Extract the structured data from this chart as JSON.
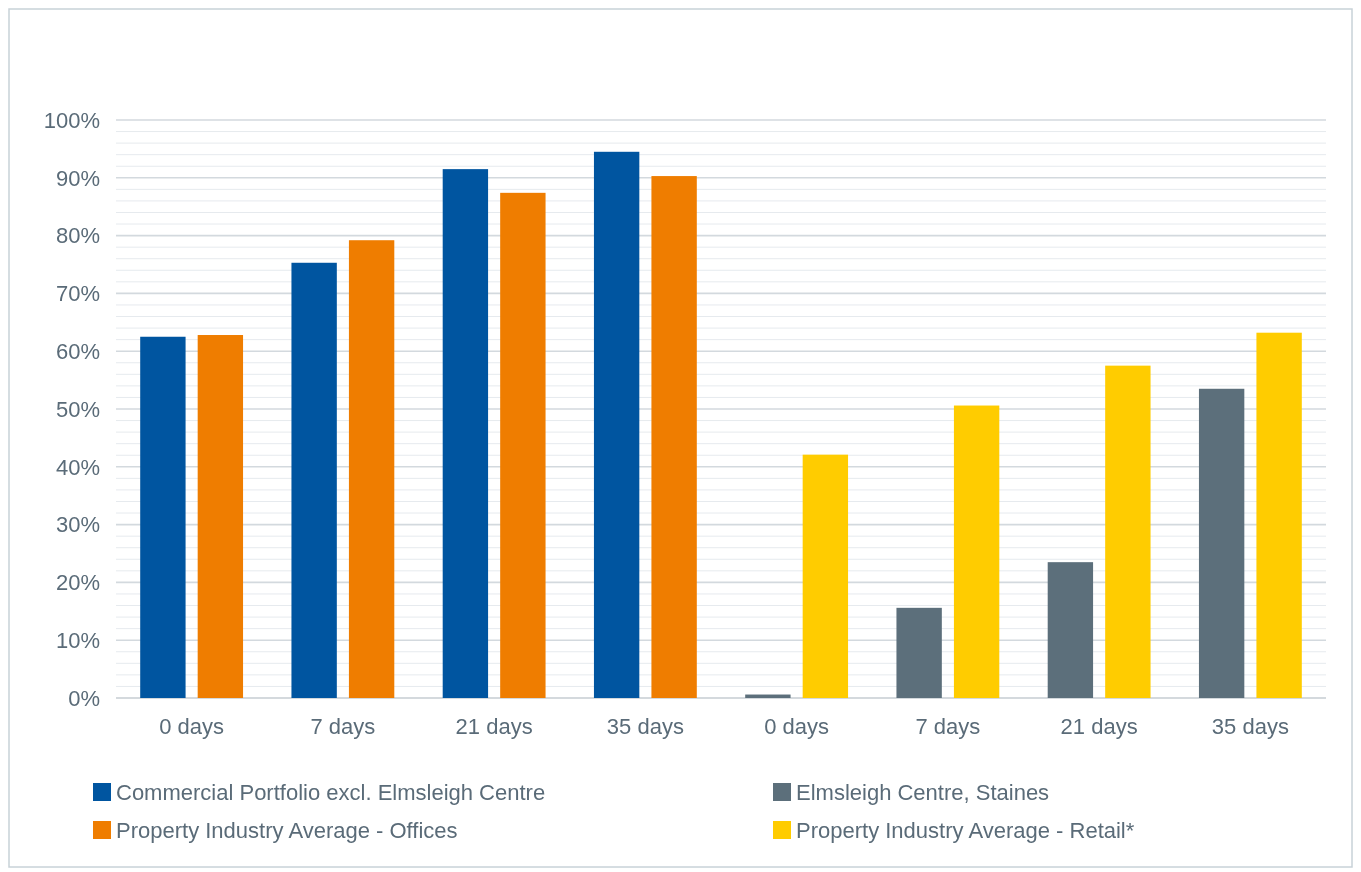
{
  "chart_data": {
    "type": "bar",
    "categories": [
      "0 days",
      "7 days",
      "21 days",
      "35 days",
      "0 days",
      "7 days",
      "21 days",
      "35 days"
    ],
    "series": [
      {
        "name": "Commercial Portfolio excl. Elmsleigh Centre",
        "color": "#0055a0",
        "values": [
          62.5,
          75.3,
          91.5,
          94.5,
          null,
          null,
          null,
          null
        ]
      },
      {
        "name": "Property Industry Average - Offices",
        "color": "#ef7d00",
        "values": [
          62.8,
          79.2,
          87.4,
          90.3,
          null,
          null,
          null,
          null
        ]
      },
      {
        "name": "Elmsleigh Centre, Staines",
        "color": "#5c6f7b",
        "values": [
          null,
          null,
          null,
          null,
          0.6,
          15.6,
          23.5,
          53.5
        ]
      },
      {
        "name": "Property Industry Average - Retail*",
        "color": "#ffcc00",
        "values": [
          null,
          null,
          null,
          null,
          42.1,
          50.6,
          57.5,
          63.2
        ]
      }
    ],
    "ylim": [
      0,
      100
    ],
    "yticks": [
      {
        "value": 0,
        "label": "0%"
      },
      {
        "value": 2,
        "label": null
      },
      {
        "value": 4,
        "label": null
      },
      {
        "value": 6,
        "label": null
      },
      {
        "value": 8,
        "label": null
      },
      {
        "value": 10,
        "label": "10%"
      },
      {
        "value": 12,
        "label": null
      },
      {
        "value": 14,
        "label": null
      },
      {
        "value": 16,
        "label": null
      },
      {
        "value": 18,
        "label": null
      },
      {
        "value": 20,
        "label": "20%"
      },
      {
        "value": 22,
        "label": null
      },
      {
        "value": 24,
        "label": null
      },
      {
        "value": 26,
        "label": null
      },
      {
        "value": 28,
        "label": null
      },
      {
        "value": 30,
        "label": "30%"
      },
      {
        "value": 32,
        "label": null
      },
      {
        "value": 34,
        "label": null
      },
      {
        "value": 36,
        "label": null
      },
      {
        "value": 38,
        "label": null
      },
      {
        "value": 40,
        "label": "40%"
      },
      {
        "value": 42,
        "label": null
      },
      {
        "value": 44,
        "label": null
      },
      {
        "value": 46,
        "label": null
      },
      {
        "value": 48,
        "label": null
      },
      {
        "value": 50,
        "label": "50%"
      },
      {
        "value": 52,
        "label": null
      },
      {
        "value": 54,
        "label": null
      },
      {
        "value": 56,
        "label": null
      },
      {
        "value": 58,
        "label": null
      },
      {
        "value": 60,
        "label": "60%"
      },
      {
        "value": 62,
        "label": null
      },
      {
        "value": 64,
        "label": null
      },
      {
        "value": 66,
        "label": null
      },
      {
        "value": 68,
        "label": null
      },
      {
        "value": 70,
        "label": "70%"
      },
      {
        "value": 72,
        "label": null
      },
      {
        "value": 74,
        "label": null
      },
      {
        "value": 76,
        "label": null
      },
      {
        "value": 78,
        "label": null
      },
      {
        "value": 80,
        "label": "80%"
      },
      {
        "value": 82,
        "label": null
      },
      {
        "value": 84,
        "label": null
      },
      {
        "value": 86,
        "label": null
      },
      {
        "value": 88,
        "label": null
      },
      {
        "value": 90,
        "label": "90%"
      },
      {
        "value": 92,
        "label": null
      },
      {
        "value": 94,
        "label": null
      },
      {
        "value": 96,
        "label": null
      },
      {
        "value": 98,
        "label": null
      },
      {
        "value": 100,
        "label": "100%"
      }
    ],
    "grid": true,
    "legend": "bottom"
  }
}
